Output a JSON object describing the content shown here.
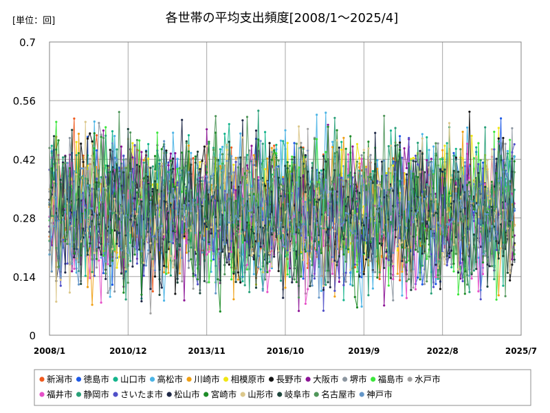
{
  "unit_label": "[単位：回]",
  "chart_data": {
    "type": "line",
    "title": "各世帯の平均支出頻度[2008/1～2025/4]",
    "xlabel": "",
    "ylabel": "",
    "ylim": [
      0,
      0.7
    ],
    "x_start": "2008/1",
    "x_end": "2025/4",
    "x_ticks": [
      "2008/1",
      "2010/12",
      "2013/11",
      "2016/10",
      "2019/9",
      "2022/8",
      "2025/7"
    ],
    "y_ticks": [
      "0",
      "0.14",
      "0.28",
      "0.42",
      "0.56",
      "0.7"
    ],
    "grid": true,
    "legend_position": "bottom",
    "series": [
      {
        "name": "新潟市",
        "color": "#f05a1e",
        "mean": 0.29,
        "amp": 0.085,
        "seed": 11
      },
      {
        "name": "徳島市",
        "color": "#1e5ae6",
        "mean": 0.3,
        "amp": 0.085,
        "seed": 23
      },
      {
        "name": "山口市",
        "color": "#14b48c",
        "mean": 0.31,
        "amp": 0.09,
        "seed": 37
      },
      {
        "name": "高松市",
        "color": "#4ab4e6",
        "mean": 0.3,
        "amp": 0.09,
        "seed": 41
      },
      {
        "name": "川崎市",
        "color": "#f0a014",
        "mean": 0.29,
        "amp": 0.085,
        "seed": 53
      },
      {
        "name": "相模原市",
        "color": "#f0e614",
        "mean": 0.3,
        "amp": 0.085,
        "seed": 67
      },
      {
        "name": "長野市",
        "color": "#141414",
        "mean": 0.3,
        "amp": 0.09,
        "seed": 71
      },
      {
        "name": "大阪市",
        "color": "#8c1496",
        "mean": 0.29,
        "amp": 0.085,
        "seed": 83
      },
      {
        "name": "堺市",
        "color": "#8c96a0",
        "mean": 0.29,
        "amp": 0.09,
        "seed": 97
      },
      {
        "name": "福島市",
        "color": "#3ce63c",
        "mean": 0.3,
        "amp": 0.09,
        "seed": 101
      },
      {
        "name": "水戸市",
        "color": "#a0a0a0",
        "mean": 0.28,
        "amp": 0.085,
        "seed": 113
      },
      {
        "name": "福井市",
        "color": "#e650c8",
        "mean": 0.28,
        "amp": 0.08,
        "seed": 127
      },
      {
        "name": "静岡市",
        "color": "#28a078",
        "mean": 0.3,
        "amp": 0.09,
        "seed": 131
      },
      {
        "name": "さいたま市",
        "color": "#5050c8",
        "mean": 0.29,
        "amp": 0.085,
        "seed": 149
      },
      {
        "name": "松山市",
        "color": "#1e2846",
        "mean": 0.29,
        "amp": 0.085,
        "seed": 157
      },
      {
        "name": "宮崎市",
        "color": "#1e8c28",
        "mean": 0.3,
        "amp": 0.09,
        "seed": 163
      },
      {
        "name": "山形市",
        "color": "#dcc88c",
        "mean": 0.29,
        "amp": 0.085,
        "seed": 179
      },
      {
        "name": "岐阜市",
        "color": "#1e463c",
        "mean": 0.29,
        "amp": 0.085,
        "seed": 181
      },
      {
        "name": "名古屋市",
        "color": "#50965a",
        "mean": 0.3,
        "amp": 0.09,
        "seed": 193
      },
      {
        "name": "神戸市",
        "color": "#6496c8",
        "mean": 0.29,
        "amp": 0.085,
        "seed": 199
      }
    ]
  }
}
